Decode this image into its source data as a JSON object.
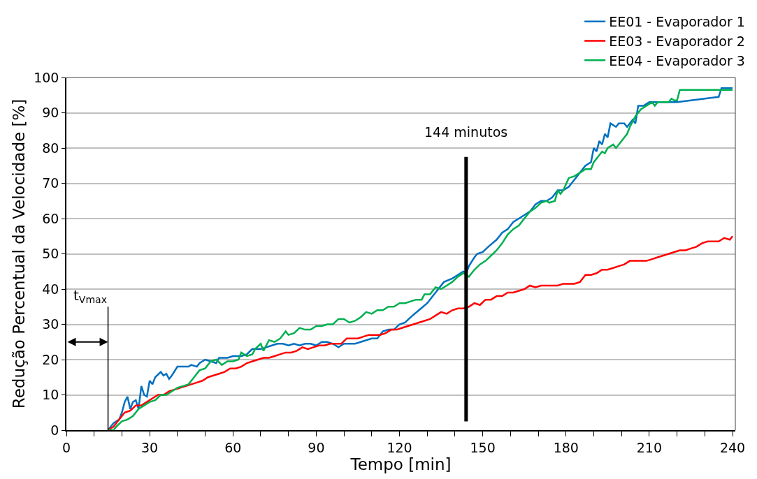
{
  "chart_data": {
    "type": "line",
    "xlabel": "Tempo [min]",
    "ylabel": "Redução Percentual da Velocidade [%]",
    "xlim": [
      0,
      241
    ],
    "ylim": [
      0,
      100
    ],
    "xticks": [
      0,
      {
        "value": 10,
        "label": null
      },
      {
        "value": 20,
        "label": null
      },
      30,
      {
        "value": 40,
        "label": null
      },
      {
        "value": 50,
        "label": null
      },
      60,
      {
        "value": 70,
        "label": null
      },
      {
        "value": 80,
        "label": null
      },
      90,
      {
        "value": 100,
        "label": null
      },
      {
        "value": 110,
        "label": null
      },
      120,
      {
        "value": 130,
        "label": null
      },
      {
        "value": 140,
        "label": null
      },
      150,
      {
        "value": 160,
        "label": null
      },
      {
        "value": 170,
        "label": null
      },
      180,
      {
        "value": 190,
        "label": null
      },
      {
        "value": 200,
        "label": null
      },
      210,
      {
        "value": 220,
        "label": null
      },
      {
        "value": 230,
        "label": null
      },
      240
    ],
    "yticks": [
      0,
      10,
      20,
      30,
      40,
      50,
      60,
      70,
      80,
      90,
      100
    ],
    "grid": "y",
    "legend": "top right",
    "marker": "none",
    "line_style": "solid",
    "ref_lines": [
      {
        "axis": "x",
        "value": 15,
        "label": "t$_{Vmax}$",
        "color": "#000000"
      },
      {
        "axis": "x",
        "value": 144,
        "label": "144 minutos",
        "color": "#000000"
      }
    ],
    "series": [
      {
        "name": "EE01 - Evaporador 1",
        "color": "#0070c0",
        "x": [
          15,
          17,
          19,
          20,
          21,
          22,
          23,
          24,
          25,
          26,
          27,
          28,
          29,
          30,
          31,
          32,
          34,
          35,
          36,
          37,
          38,
          40,
          42,
          44,
          45,
          47,
          48,
          50,
          52,
          54,
          55,
          58,
          60,
          63,
          65,
          67,
          70,
          72,
          74,
          76,
          78,
          80,
          82,
          84,
          86,
          88,
          90,
          92,
          94,
          96,
          98,
          100,
          104,
          106,
          108,
          110,
          112,
          114,
          116,
          118,
          120,
          122,
          124,
          127,
          130,
          132,
          134,
          136,
          139,
          141,
          143,
          144,
          145,
          147,
          148,
          150,
          152,
          155,
          157,
          159,
          161,
          163,
          165,
          167,
          169,
          171,
          173,
          175,
          177,
          179,
          181,
          183,
          185,
          187,
          189,
          190,
          191,
          192,
          193,
          194,
          195,
          196,
          198,
          199,
          201,
          202,
          203,
          204,
          205,
          206,
          208,
          210,
          215,
          220,
          225,
          230,
          235,
          236,
          240
        ],
        "values": [
          0,
          2,
          3,
          5,
          8,
          9.5,
          6,
          8,
          8.5,
          6,
          12.5,
          10,
          9.5,
          14,
          13,
          15,
          16.5,
          15.5,
          16,
          14.5,
          15.5,
          18,
          18,
          18,
          18.5,
          18,
          19,
          20,
          19.5,
          19,
          20.5,
          20.5,
          21,
          21,
          21.5,
          23,
          23,
          23.5,
          24,
          24.5,
          24.5,
          24,
          24.5,
          24,
          24.5,
          24.5,
          24,
          25,
          25,
          24.5,
          23.5,
          24.5,
          24.5,
          25,
          25.5,
          26,
          26,
          28,
          28.5,
          28.5,
          30,
          30.5,
          32,
          34,
          36,
          38,
          40,
          42,
          43,
          44,
          45,
          44.5,
          46.5,
          49,
          50,
          50.5,
          52,
          54,
          56,
          57,
          59,
          60,
          61,
          62,
          64,
          65,
          65,
          66,
          68,
          68,
          69,
          71,
          73,
          75,
          76,
          80,
          79,
          82,
          81,
          84,
          83,
          87,
          86,
          87,
          87,
          86,
          87,
          88,
          87,
          92,
          92,
          93,
          93,
          93,
          93.5,
          94,
          94.5,
          97,
          97
        ]
      },
      {
        "name": "EE03 - Evaporador 2",
        "color": "#ff0000",
        "x": [
          15,
          17,
          19,
          21,
          23,
          25,
          27,
          29,
          31,
          33,
          35,
          37,
          39,
          41,
          43,
          45,
          47,
          49,
          51,
          53,
          55,
          57,
          59,
          61,
          63,
          65,
          67,
          69,
          71,
          73,
          75,
          77,
          79,
          81,
          83,
          85,
          87,
          89,
          91,
          93,
          95,
          97,
          99,
          101,
          103,
          105,
          107,
          109,
          111,
          113,
          115,
          117,
          119,
          121,
          123,
          125,
          127,
          129,
          131,
          133,
          135,
          137,
          139,
          141,
          143,
          145,
          147,
          149,
          151,
          153,
          155,
          157,
          159,
          161,
          163,
          165,
          167,
          169,
          171,
          173,
          175,
          177,
          179,
          181,
          183,
          185,
          187,
          189,
          191,
          193,
          195,
          197,
          199,
          201,
          203,
          205,
          207,
          209,
          211,
          213,
          215,
          217,
          219,
          221,
          223,
          225,
          227,
          229,
          231,
          233,
          235,
          237,
          239,
          240
        ],
        "values": [
          0,
          1,
          3,
          5,
          5.5,
          7,
          7,
          8,
          9,
          10,
          10,
          11,
          11.5,
          12,
          12.5,
          13,
          13.5,
          14,
          15,
          15.5,
          16,
          16.5,
          17.5,
          17.5,
          18,
          19,
          19.5,
          20,
          20.5,
          20.5,
          21,
          21.5,
          22,
          22,
          22.5,
          23.5,
          23,
          23.5,
          24,
          24,
          24.5,
          24.5,
          24.5,
          26,
          26,
          26,
          26.5,
          27,
          27,
          27,
          27.5,
          28.5,
          28.5,
          29,
          29.5,
          30,
          30.5,
          31,
          31.5,
          32.5,
          33.5,
          33,
          34,
          34.5,
          34.5,
          35,
          36,
          35.5,
          37,
          37,
          38,
          38,
          39,
          39,
          39.5,
          40,
          41,
          40.5,
          41,
          41,
          41,
          41,
          41.5,
          41.5,
          41.5,
          42,
          44,
          44,
          44.5,
          45.5,
          45.5,
          46,
          46.5,
          47,
          48,
          48,
          48,
          48,
          48.5,
          49,
          49.5,
          50,
          50.5,
          51,
          51,
          51.5,
          52,
          53,
          53.5,
          53.5,
          53.5,
          54.5,
          54,
          55
        ]
      },
      {
        "name": "EE04 - Evaporador 3",
        "color": "#00b050",
        "x": [
          15,
          17,
          18,
          20,
          22,
          24,
          26,
          28,
          30,
          32,
          34,
          36,
          38,
          40,
          42,
          44,
          46,
          48,
          50,
          52,
          54,
          56,
          58,
          60,
          62,
          63,
          65,
          67,
          68,
          70,
          71,
          73,
          75,
          77,
          79,
          80,
          82,
          84,
          86,
          88,
          90,
          92,
          94,
          96,
          98,
          100,
          102,
          104,
          106,
          108,
          110,
          112,
          114,
          116,
          118,
          120,
          122,
          124,
          126,
          128,
          129,
          131,
          133,
          135,
          137,
          139,
          141,
          143,
          145,
          147,
          149,
          151,
          153,
          155,
          157,
          159,
          161,
          163,
          165,
          167,
          169,
          171,
          173,
          174,
          176,
          177,
          178,
          179,
          181,
          183,
          185,
          187,
          189,
          190,
          191,
          193,
          194,
          195,
          197,
          198,
          200,
          202,
          203,
          205,
          207,
          209,
          211,
          212,
          213,
          215,
          217,
          218,
          219,
          220,
          221,
          225,
          240
        ],
        "values": [
          0,
          0,
          1,
          2.5,
          3,
          4,
          6,
          7,
          8,
          8.5,
          10,
          10,
          11,
          12,
          12.5,
          13,
          15,
          17,
          17.5,
          19.5,
          20,
          18.5,
          19.5,
          19.5,
          20,
          22,
          21,
          21.5,
          23,
          24.5,
          22.5,
          25.5,
          25,
          26,
          28,
          27,
          27.5,
          29,
          28.5,
          28.5,
          29.5,
          29.5,
          30,
          30,
          31.5,
          31.5,
          30.5,
          31,
          32,
          33.5,
          33,
          34,
          34,
          35,
          35,
          36,
          36,
          36.5,
          37,
          37,
          38.5,
          38.5,
          40.5,
          40,
          41,
          42,
          43.5,
          44.5,
          43.5,
          45.5,
          47,
          48,
          49.5,
          51,
          53,
          55.5,
          57,
          58,
          60,
          62,
          63,
          64.5,
          65,
          64.5,
          65,
          68,
          67,
          68,
          71.5,
          72,
          73,
          74,
          74,
          76,
          77,
          79,
          78.5,
          80,
          81,
          80,
          82,
          84,
          86,
          89,
          91,
          92,
          93,
          92,
          93,
          93,
          93,
          94,
          93.5,
          93.5,
          96.5,
          96.5,
          96.5
        ]
      }
    ]
  }
}
